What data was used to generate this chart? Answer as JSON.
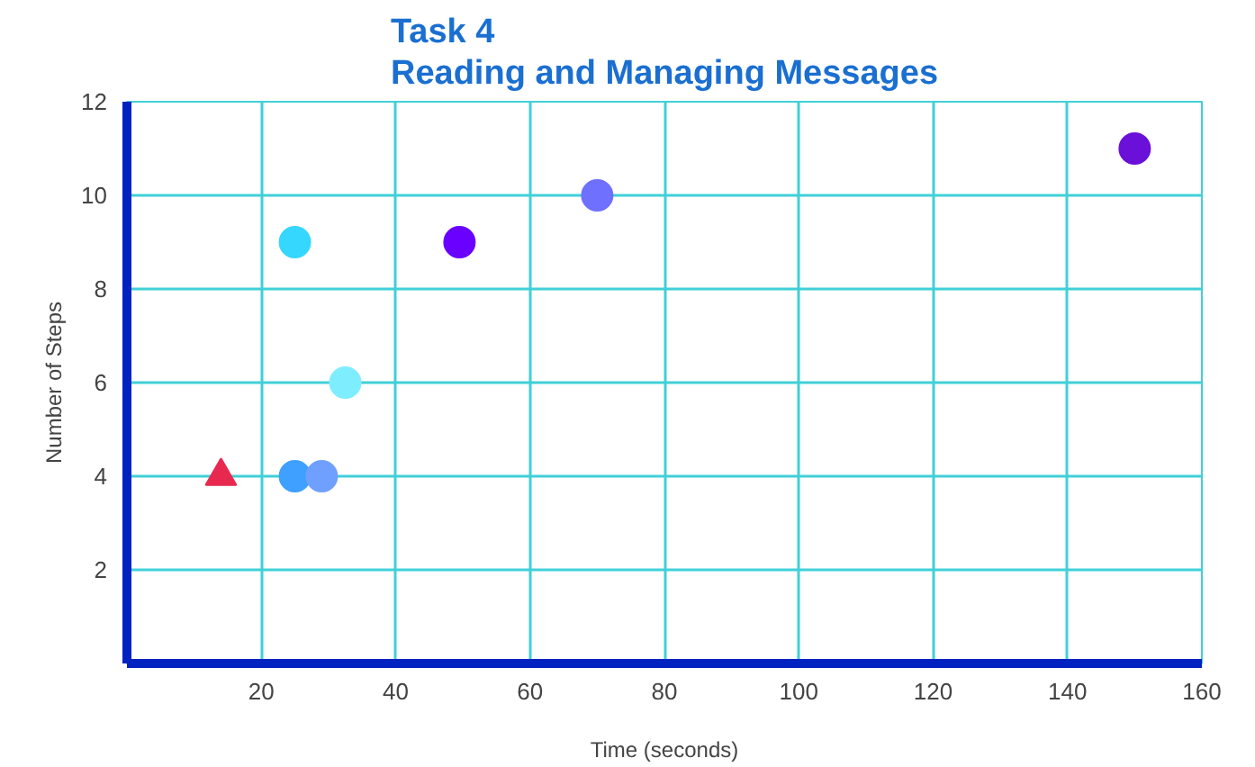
{
  "chart_data": {
    "type": "scatter",
    "title": "Task 4\nReading and Managing Messages",
    "xlabel": "Time (seconds)",
    "ylabel": "Number of Steps",
    "series": [
      {
        "marker": "triangle",
        "x": [
          14
        ],
        "values": [
          4
        ],
        "colors": [
          "#e8294f"
        ]
      },
      {
        "marker": "circle",
        "x": [
          25,
          29,
          25,
          32.5,
          49.5,
          70,
          150
        ],
        "values": [
          4,
          4,
          9,
          6,
          9,
          10,
          11
        ],
        "colors": [
          "#3fa0ff",
          "#70a0ff",
          "#36d7ff",
          "#7eeeff",
          "#6a00ff",
          "#7070ff",
          "#6a10d8"
        ]
      }
    ],
    "xlim": [
      0,
      160
    ],
    "ylim": [
      0,
      12
    ],
    "xticks": [
      20,
      40,
      60,
      80,
      100,
      120,
      140,
      160
    ],
    "yticks": [
      2,
      4,
      6,
      8,
      10,
      12
    ],
    "grid": true
  }
}
